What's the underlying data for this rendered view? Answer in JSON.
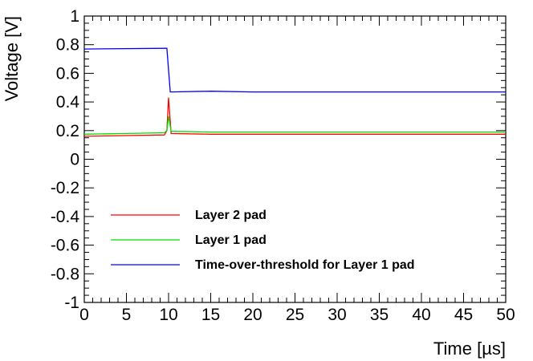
{
  "chart_data": {
    "type": "line",
    "xlabel": "Time [µs]",
    "ylabel": "Voltage [V]",
    "xlim": [
      0,
      50
    ],
    "ylim": [
      -1,
      1
    ],
    "x_ticks": [
      0,
      5,
      10,
      15,
      20,
      25,
      30,
      35,
      40,
      45,
      50
    ],
    "x_tick_labels": [
      "0",
      "5",
      "10",
      "15",
      "20",
      "25",
      "30",
      "35",
      "40",
      "45",
      "50"
    ],
    "y_ticks": [
      -1,
      -0.8,
      -0.6,
      -0.4,
      -0.2,
      0,
      0.2,
      0.4,
      0.6,
      0.8,
      1
    ],
    "y_tick_labels": [
      "-1",
      "-0.8",
      "-0.6",
      "-0.4",
      "-0.2",
      "0",
      "0.2",
      "0.4",
      "0.6",
      "0.8",
      "1"
    ],
    "grid": false,
    "legend_position": "lower-left",
    "series": [
      {
        "name": "Layer 2 pad",
        "color": "#ff0000",
        "x": [
          0,
          5,
          9.5,
          9.8,
          10,
          10.3,
          15,
          20,
          30,
          40,
          50
        ],
        "y": [
          0.16,
          0.165,
          0.17,
          0.2,
          0.43,
          0.18,
          0.175,
          0.175,
          0.175,
          0.175,
          0.175
        ]
      },
      {
        "name": "Layer 1 pad",
        "color": "#00dd00",
        "x": [
          0,
          5,
          9.5,
          9.8,
          10,
          10.3,
          15,
          20,
          30,
          40,
          50
        ],
        "y": [
          0.175,
          0.18,
          0.185,
          0.2,
          0.3,
          0.195,
          0.19,
          0.19,
          0.19,
          0.19,
          0.19
        ]
      },
      {
        "name": "Time-over-threshold for Layer 1 pad",
        "color": "#0000ff",
        "x": [
          0,
          9.7,
          9.8,
          10.2,
          15,
          20,
          30,
          40,
          50
        ],
        "y": [
          0.77,
          0.775,
          0.775,
          0.47,
          0.475,
          0.47,
          0.47,
          0.47,
          0.47
        ]
      }
    ]
  }
}
